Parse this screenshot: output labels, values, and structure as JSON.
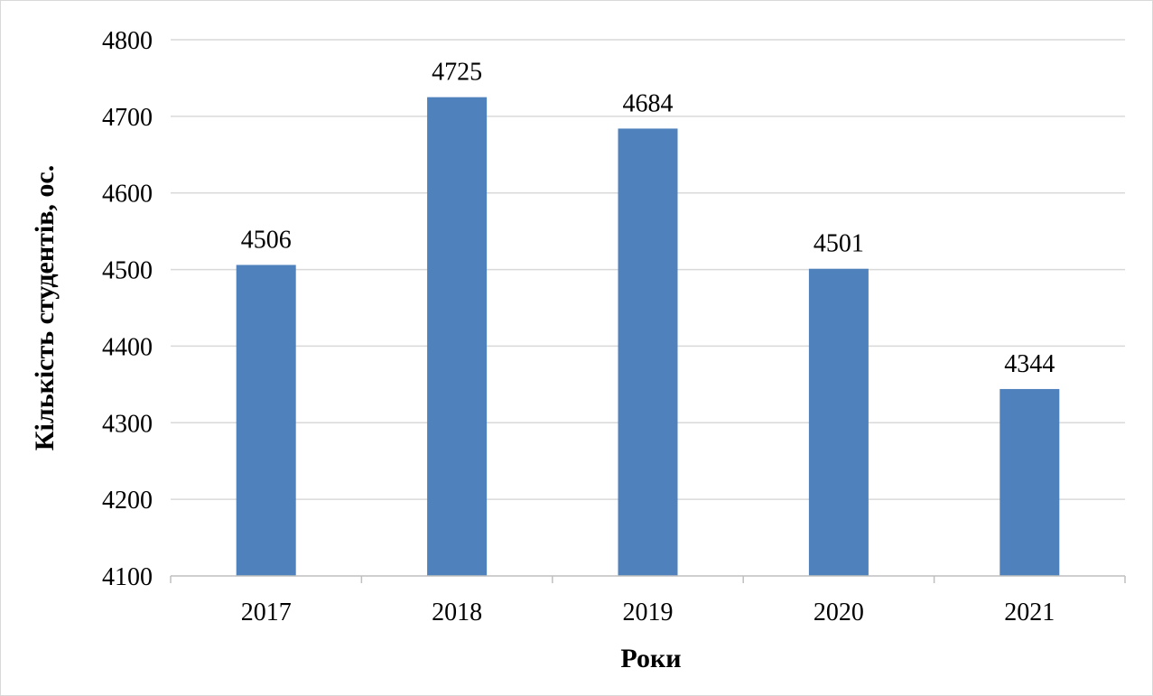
{
  "chart_data": {
    "type": "bar",
    "categories": [
      "2017",
      "2018",
      "2019",
      "2020",
      "2021"
    ],
    "values": [
      4506,
      4725,
      4684,
      4501,
      4344
    ],
    "data_labels": [
      "4506",
      "4725",
      "4684",
      "4501",
      "4344"
    ],
    "title": "",
    "xlabel": "Роки",
    "ylabel": "Кількість студентів, ос.",
    "ylim": [
      4100,
      4800
    ],
    "yticks": [
      "4100",
      "4200",
      "4300",
      "4400",
      "4500",
      "4600",
      "4700",
      "4800"
    ],
    "ytick_values": [
      4100,
      4200,
      4300,
      4400,
      4500,
      4600,
      4700,
      4800
    ],
    "grid": true,
    "legend": "none",
    "bar_color": "#4f81bd"
  }
}
